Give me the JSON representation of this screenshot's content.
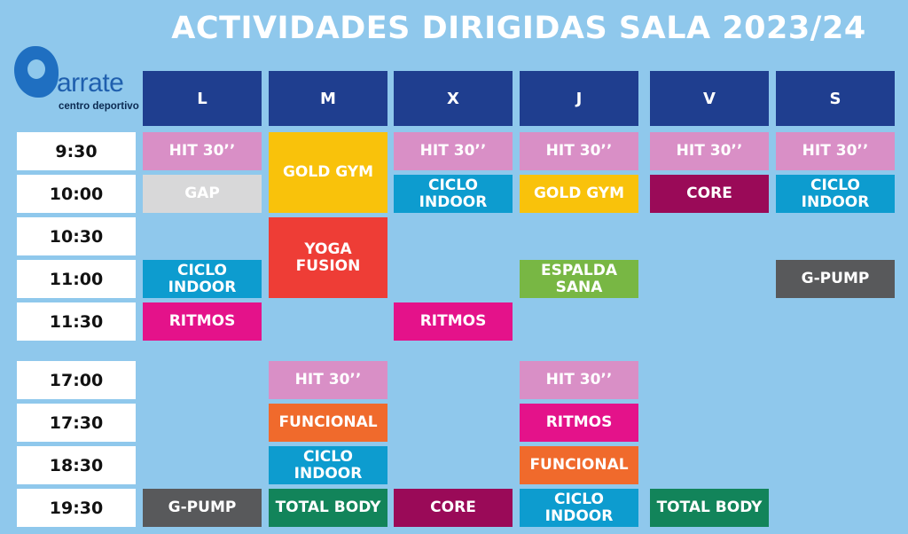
{
  "title": "ACTIVIDADES DIRIGIDAS SALA 2023/24",
  "logo": {
    "name": "arrate",
    "subtitle": "centro deportivo"
  },
  "days": [
    "L",
    "M",
    "X",
    "J",
    "V",
    "S"
  ],
  "times": [
    "9:30",
    "10:00",
    "10:30",
    "11:00",
    "11:30",
    "17:00",
    "17:30",
    "18:30",
    "19:30"
  ],
  "activities": {
    "l_930": "HIT 30’’",
    "l_1000": "GAP",
    "l_1100": "CICLO\nINDOOR",
    "l_1130": "RITMOS",
    "l_1930": "G-PUMP",
    "m_930": "GOLD GYM",
    "m_1030": "YOGA\nFUSION",
    "m_1700": "HIT 30’’",
    "m_1730": "FUNCIONAL",
    "m_1830": "CICLO\nINDOOR",
    "m_1930": "TOTAL BODY",
    "x_930": "HIT 30’’",
    "x_1000": "CICLO\nINDOOR",
    "x_1130": "RITMOS",
    "x_1930": "CORE",
    "j_930": "HIT 30’’",
    "j_1000": "GOLD GYM",
    "j_1100": "ESPALDA\nSANA",
    "j_1700": "HIT 30’’",
    "j_1730": "RITMOS",
    "j_1830": "FUNCIONAL",
    "j_1930": "CICLO\nINDOOR",
    "v_930": "HIT 30’’",
    "v_1000": "CORE",
    "v_1930": "TOTAL BODY",
    "s_930": "HIT 30’’",
    "s_1000": "CICLO\nINDOOR",
    "s_1100": "G-PUMP"
  },
  "colors": {
    "background": "#8fc8ec",
    "day_header": "#1f3e8f",
    "hit": "#d98fc6",
    "gold_gym": "#f9c20b",
    "gap": "#d8d8d9",
    "ciclo_indoor": "#0d9ccf",
    "core": "#9a0a58",
    "yoga_fusion": "#ee3d36",
    "espalda_sana": "#78b744",
    "g_pump": "#58595b",
    "ritmos": "#e4128a",
    "funcional": "#f06a2c",
    "total_body": "#12845a"
  }
}
